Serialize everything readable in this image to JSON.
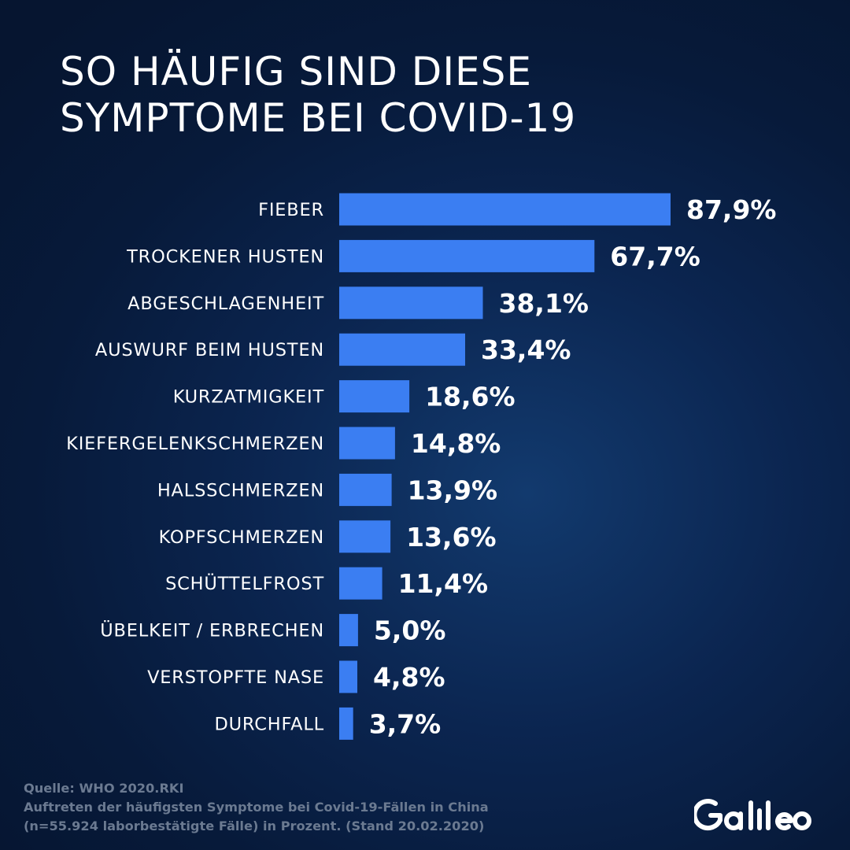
{
  "title": {
    "line1": "SO HÄUFIG SIND DIESE",
    "line2": "SYMPTOME BEI COVID-19"
  },
  "chart_data": {
    "type": "bar",
    "orientation": "horizontal",
    "categories": [
      "FIEBER",
      "TROCKENER HUSTEN",
      "ABGESCHLAGENHEIT",
      "AUSWURF BEIM HUSTEN",
      "KURZATMIGKEIT",
      "KIEFERGELENKSCHMERZEN",
      "HALSSCHMERZEN",
      "KOPFSCHMERZEN",
      "SCHÜTTELFROST",
      "ÜBELKEIT / ERBRECHEN",
      "VERSTOPFTE NASE",
      "DURCHFALL"
    ],
    "values": [
      87.9,
      67.7,
      38.1,
      33.4,
      18.6,
      14.8,
      13.9,
      13.6,
      11.4,
      5.0,
      4.8,
      3.7
    ],
    "value_labels": [
      "87,9%",
      "67,7%",
      "38,1%",
      "33,4%",
      "18,6%",
      "14,8%",
      "13,9%",
      "13,6%",
      "11,4%",
      "5,0%",
      "4,8%",
      "3,7%"
    ],
    "bar_color": "#3b7ef2",
    "grid": false,
    "legend": "none"
  },
  "footer": {
    "source": "Quelle: WHO 2020.RKI",
    "note_line1": "Auftreten der häufigsten Symptome bei Covid-19-Fällen in China",
    "note_line2": "(n=55.924 laborbestätigte Fälle) in Prozent. (Stand 20.02.2020)"
  },
  "brand": {
    "logo_text": "Galileo"
  },
  "colors": {
    "background": "#0b2550",
    "bar": "#3b7ef2",
    "text": "#ffffff",
    "footer_text": "#6b7a91"
  }
}
